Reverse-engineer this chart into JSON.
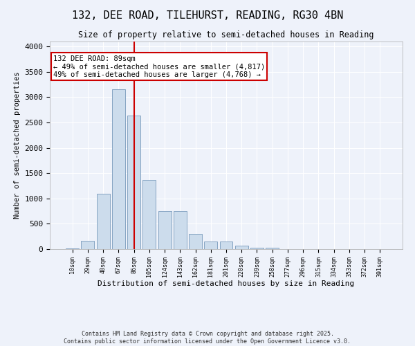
{
  "title1": "132, DEE ROAD, TILEHURST, READING, RG30 4BN",
  "title2": "Size of property relative to semi-detached houses in Reading",
  "xlabel": "Distribution of semi-detached houses by size in Reading",
  "ylabel": "Number of semi-detached properties",
  "categories": [
    "10sqm",
    "29sqm",
    "48sqm",
    "67sqm",
    "86sqm",
    "105sqm",
    "124sqm",
    "143sqm",
    "162sqm",
    "181sqm",
    "201sqm",
    "220sqm",
    "239sqm",
    "258sqm",
    "277sqm",
    "296sqm",
    "315sqm",
    "334sqm",
    "353sqm",
    "372sqm",
    "391sqm"
  ],
  "bar_heights": [
    10,
    165,
    1090,
    3160,
    2640,
    1360,
    750,
    750,
    305,
    145,
    145,
    65,
    30,
    30,
    5,
    5,
    5,
    5,
    2,
    1,
    0
  ],
  "bar_color": "#ccdcec",
  "bar_edge_color": "#7799bb",
  "vline_x": 4,
  "vline_color": "#cc0000",
  "annotation_text": "132 DEE ROAD: 89sqm\n← 49% of semi-detached houses are smaller (4,817)\n49% of semi-detached houses are larger (4,768) →",
  "annotation_box_color": "#ffffff",
  "annotation_box_edge": "#cc0000",
  "ylim": [
    0,
    4100
  ],
  "yticks": [
    0,
    500,
    1000,
    1500,
    2000,
    2500,
    3000,
    3500,
    4000
  ],
  "background_color": "#eef2fa",
  "grid_color": "#ffffff",
  "footer1": "Contains HM Land Registry data © Crown copyright and database right 2025.",
  "footer2": "Contains public sector information licensed under the Open Government Licence v3.0."
}
